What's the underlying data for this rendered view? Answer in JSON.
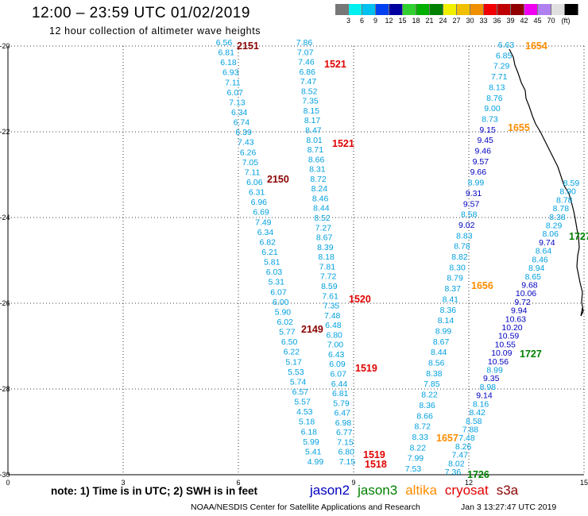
{
  "header": {
    "title": "12:00 – 23:59 UTC 01/02/2019",
    "subtitle": "12 hour collection of altimeter wave heights"
  },
  "color_scale": {
    "unit": "(ft)",
    "colors": [
      "#777777",
      "#00f0f0",
      "#00c0f0",
      "#0040f0",
      "#0000a0",
      "#30d030",
      "#00b000",
      "#008000",
      "#f0f000",
      "#f0c000",
      "#f09000",
      "#f00000",
      "#c00000",
      "#900000",
      "#f000f0",
      "#b080f0",
      "#e0e0e0",
      "#000000"
    ],
    "labels": [
      "3",
      "6",
      "9",
      "12",
      "15",
      "18",
      "21",
      "24",
      "27",
      "30",
      "33",
      "36",
      "39",
      "42",
      "45",
      "70"
    ]
  },
  "axes": {
    "x_ticks": [
      "0",
      "3",
      "6",
      "9",
      "12",
      "15"
    ],
    "y_ticks": [
      "-20",
      "-22",
      "-24",
      "-26",
      "-28",
      "-30"
    ],
    "xlim": [
      0,
      15
    ],
    "ylim": [
      -30,
      -20
    ],
    "grid": true
  },
  "tracks": [
    {
      "name": "jason2 pass 2151",
      "points": [
        [
          "6.56",
          "#00a0e0"
        ],
        [
          "6.81",
          "#00a0e0"
        ],
        [
          "6.18",
          "#00a0e0"
        ],
        [
          "6.93",
          "#00a0e0"
        ],
        [
          "7.11",
          "#00a0e0"
        ],
        [
          "6.07",
          "#00a0e0"
        ],
        [
          "7.13",
          "#00a0e0"
        ],
        [
          "6.34",
          "#00a0e0"
        ],
        [
          "6.74",
          "#00a0e0"
        ],
        [
          "6.39",
          "#00a0e0"
        ],
        [
          "7.43",
          "#00a0e0"
        ],
        [
          "6.26",
          "#00a0e0"
        ],
        [
          "7.05",
          "#00a0e0"
        ],
        [
          "7.11",
          "#00a0e0"
        ],
        [
          "6.06",
          "#00a0e0"
        ],
        [
          "6.31",
          "#00a0e0"
        ],
        [
          "6.96",
          "#00a0e0"
        ],
        [
          "6.69",
          "#00a0e0"
        ],
        [
          "7.49",
          "#00a0e0"
        ],
        [
          "6.34",
          "#00a0e0"
        ],
        [
          "6.82",
          "#00a0e0"
        ],
        [
          "6.21",
          "#00a0e0"
        ],
        [
          "5.81",
          "#00a0e0"
        ],
        [
          "6.03",
          "#00a0e0"
        ],
        [
          "5.31",
          "#00a0e0"
        ],
        [
          "6.07",
          "#00a0e0"
        ],
        [
          "6.00",
          "#00a0e0"
        ],
        [
          "5.90",
          "#00a0e0"
        ],
        [
          "6.02",
          "#00a0e0"
        ],
        [
          "5.77",
          "#00a0e0"
        ],
        [
          "6.50",
          "#00a0e0"
        ],
        [
          "6.22",
          "#00a0e0"
        ],
        [
          "5.17",
          "#00a0e0"
        ],
        [
          "5.53",
          "#00a0e0"
        ],
        [
          "5.74",
          "#00a0e0"
        ],
        [
          "6.57",
          "#00a0e0"
        ],
        [
          "5.57",
          "#00a0e0"
        ],
        [
          "4.53",
          "#00a0e0"
        ],
        [
          "5.18",
          "#00a0e0"
        ],
        [
          "6.18",
          "#00a0e0"
        ],
        [
          "5.99",
          "#00a0e0"
        ],
        [
          "5.41",
          "#00a0e0"
        ],
        [
          "4.99",
          "#00a0e0"
        ]
      ]
    },
    {
      "name": "cryosat pass 1521",
      "points": [
        [
          "7.86",
          "#00a0e0"
        ],
        [
          "7.07",
          "#00a0e0"
        ],
        [
          "7.46",
          "#00a0e0"
        ],
        [
          "6.86",
          "#00a0e0"
        ],
        [
          "7.47",
          "#00a0e0"
        ],
        [
          "8.52",
          "#00a0e0"
        ],
        [
          "7.35",
          "#00a0e0"
        ],
        [
          "8.15",
          "#00a0e0"
        ],
        [
          "8.17",
          "#00a0e0"
        ],
        [
          "8.47",
          "#00a0e0"
        ],
        [
          "8.01",
          "#00a0e0"
        ],
        [
          "8.71",
          "#00a0e0"
        ],
        [
          "8.66",
          "#00a0e0"
        ],
        [
          "8.31",
          "#00a0e0"
        ],
        [
          "8.72",
          "#00a0e0"
        ],
        [
          "8.24",
          "#00a0e0"
        ],
        [
          "8.46",
          "#00a0e0"
        ],
        [
          "8.44",
          "#00a0e0"
        ],
        [
          "8.52",
          "#00a0e0"
        ],
        [
          "7.27",
          "#00a0e0"
        ],
        [
          "8.67",
          "#00a0e0"
        ],
        [
          "8.39",
          "#00a0e0"
        ],
        [
          "8.18",
          "#00a0e0"
        ],
        [
          "7.81",
          "#00a0e0"
        ],
        [
          "7.72",
          "#00a0e0"
        ],
        [
          "8.59",
          "#00a0e0"
        ],
        [
          "7.61",
          "#00a0e0"
        ],
        [
          "7.35",
          "#00a0e0"
        ],
        [
          "7.48",
          "#00a0e0"
        ],
        [
          "6.48",
          "#00a0e0"
        ],
        [
          "6.80",
          "#00a0e0"
        ],
        [
          "7.00",
          "#00a0e0"
        ],
        [
          "6.43",
          "#00a0e0"
        ],
        [
          "6.09",
          "#00a0e0"
        ],
        [
          "6.07",
          "#00a0e0"
        ],
        [
          "6.44",
          "#00a0e0"
        ],
        [
          "6.81",
          "#00a0e0"
        ],
        [
          "5.79",
          "#00a0e0"
        ],
        [
          "6.47",
          "#00a0e0"
        ],
        [
          "6.98",
          "#00a0e0"
        ],
        [
          "6.77",
          "#00a0e0"
        ],
        [
          "7.15",
          "#00a0e0"
        ],
        [
          "6.80",
          "#00a0e0"
        ],
        [
          "7.15",
          "#00a0e0"
        ]
      ]
    },
    {
      "name": "altika pass 1656",
      "points": [
        [
          "6.63",
          "#00a0e0"
        ],
        [
          "6.85",
          "#00a0e0"
        ],
        [
          "7.29",
          "#00a0e0"
        ],
        [
          "7.71",
          "#00a0e0"
        ],
        [
          "8.13",
          "#00a0e0"
        ],
        [
          "8.76",
          "#00a0e0"
        ],
        [
          "9.00",
          "#00a0e0"
        ],
        [
          "8.73",
          "#00a0e0"
        ],
        [
          "9.15",
          "#0000c0"
        ],
        [
          "9.45",
          "#0000c0"
        ],
        [
          "9.46",
          "#0000c0"
        ],
        [
          "9.57",
          "#0000c0"
        ],
        [
          "9.66",
          "#0000c0"
        ],
        [
          "8.99",
          "#00a0e0"
        ],
        [
          "9.31",
          "#0000c0"
        ],
        [
          "9.57",
          "#0000c0"
        ],
        [
          "8.58",
          "#00a0e0"
        ],
        [
          "9.02",
          "#0000c0"
        ],
        [
          "8.83",
          "#00a0e0"
        ],
        [
          "8.78",
          "#00a0e0"
        ],
        [
          "8.82",
          "#00a0e0"
        ],
        [
          "8.30",
          "#00a0e0"
        ],
        [
          "8.79",
          "#00a0e0"
        ],
        [
          "8.37",
          "#00a0e0"
        ],
        [
          "8.41",
          "#00a0e0"
        ],
        [
          "8.36",
          "#00a0e0"
        ],
        [
          "8.14",
          "#00a0e0"
        ],
        [
          "8.99",
          "#00a0e0"
        ],
        [
          "8.67",
          "#00a0e0"
        ],
        [
          "8.44",
          "#00a0e0"
        ],
        [
          "8.56",
          "#00a0e0"
        ],
        [
          "8.38",
          "#00a0e0"
        ],
        [
          "7.85",
          "#00a0e0"
        ],
        [
          "8.22",
          "#00a0e0"
        ],
        [
          "8.36",
          "#00a0e0"
        ],
        [
          "8.66",
          "#00a0e0"
        ],
        [
          "8.72",
          "#00a0e0"
        ],
        [
          "8.33",
          "#00a0e0"
        ],
        [
          "8.22",
          "#00a0e0"
        ],
        [
          "7.99",
          "#00a0e0"
        ],
        [
          "7.53",
          "#00a0e0"
        ]
      ]
    },
    {
      "name": "jason3 pass 1727",
      "points": [
        [
          "8.59",
          "#00a0e0"
        ],
        [
          "8.90",
          "#00a0e0"
        ],
        [
          "8.78",
          "#00a0e0"
        ],
        [
          "8.78",
          "#00a0e0"
        ],
        [
          "8.38",
          "#00a0e0"
        ],
        [
          "8.29",
          "#00a0e0"
        ],
        [
          "8.06",
          "#00a0e0"
        ],
        [
          "9.74",
          "#0000c0"
        ],
        [
          "8.64",
          "#00a0e0"
        ],
        [
          "8.46",
          "#00a0e0"
        ],
        [
          "8.94",
          "#00a0e0"
        ],
        [
          "8.65",
          "#00a0e0"
        ],
        [
          "9.68",
          "#0000c0"
        ],
        [
          "10.06",
          "#0000c0"
        ],
        [
          "9.72",
          "#0000c0"
        ],
        [
          "9.94",
          "#0000c0"
        ],
        [
          "10.63",
          "#0000c0"
        ],
        [
          "10.20",
          "#0000c0"
        ],
        [
          "10.59",
          "#0000c0"
        ],
        [
          "10.55",
          "#0000c0"
        ],
        [
          "10.09",
          "#0000c0"
        ],
        [
          "10.56",
          "#0000c0"
        ],
        [
          "8.99",
          "#00a0e0"
        ],
        [
          "9.35",
          "#0000c0"
        ],
        [
          "8.98",
          "#00a0e0"
        ],
        [
          "9.14",
          "#0000c0"
        ],
        [
          "8.16",
          "#00a0e0"
        ],
        [
          "8.42",
          "#00a0e0"
        ],
        [
          "8.58",
          "#00a0e0"
        ],
        [
          "7.88",
          "#00a0e0"
        ],
        [
          "7.48",
          "#00a0e0"
        ],
        [
          "8.26",
          "#00a0e0"
        ],
        [
          "7.47",
          "#00a0e0"
        ],
        [
          "8.02",
          "#00a0e0"
        ],
        [
          "7.36",
          "#00a0e0"
        ]
      ]
    }
  ],
  "pass_labels": [
    {
      "text": "2151",
      "color": "#8b0000"
    },
    {
      "text": "1521",
      "color": "#e00000"
    },
    {
      "text": "1521",
      "color": "#e00000"
    },
    {
      "text": "2150",
      "color": "#8b0000"
    },
    {
      "text": "1520",
      "color": "#e00000"
    },
    {
      "text": "2149",
      "color": "#8b0000"
    },
    {
      "text": "1519",
      "color": "#e00000"
    },
    {
      "text": "1519",
      "color": "#e00000"
    },
    {
      "text": "1518",
      "color": "#e00000"
    },
    {
      "text": "1654",
      "color": "#ff8c00"
    },
    {
      "text": "1655",
      "color": "#ff8c00"
    },
    {
      "text": "1656",
      "color": "#ff8c00"
    },
    {
      "text": "1657",
      "color": "#ff8c00"
    },
    {
      "text": "1727",
      "color": "#008000"
    },
    {
      "text": "1727",
      "color": "#008000"
    },
    {
      "text": "1726",
      "color": "#008000"
    }
  ],
  "footer": {
    "note": "note: 1) Time is in UTC; 2) SWH is in feet",
    "legend": [
      {
        "text": "jason2",
        "color": "#0000c0"
      },
      {
        "text": "jason3",
        "color": "#008000"
      },
      {
        "text": "altika",
        "color": "#ff8c00"
      },
      {
        "text": "cryosat",
        "color": "#e00000"
      },
      {
        "text": "s3a",
        "color": "#8b0000"
      }
    ],
    "credit": "NOAA/NESDIS Center for Satellite Applications and Research",
    "timestamp": "Jan  3 13:27:47 UTC 2019"
  }
}
